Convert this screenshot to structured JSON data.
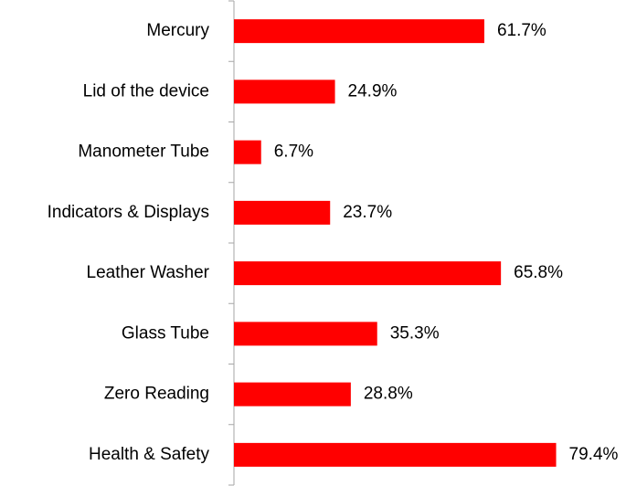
{
  "chart_data": {
    "type": "bar",
    "orientation": "horizontal",
    "categories": [
      "Mercury",
      "Lid of the device",
      "Manometer Tube",
      "Indicators & Displays",
      "Leather Washer",
      "Glass Tube",
      "Zero Reading",
      "Health & Safety"
    ],
    "values": [
      61.7,
      24.9,
      6.7,
      23.7,
      65.8,
      35.3,
      28.8,
      79.4
    ],
    "value_labels": [
      "61.7%",
      "24.9%",
      "6.7%",
      "23.7%",
      "65.8%",
      "35.3%",
      "28.8%",
      "79.4%"
    ],
    "color": "#ff0000"
  }
}
